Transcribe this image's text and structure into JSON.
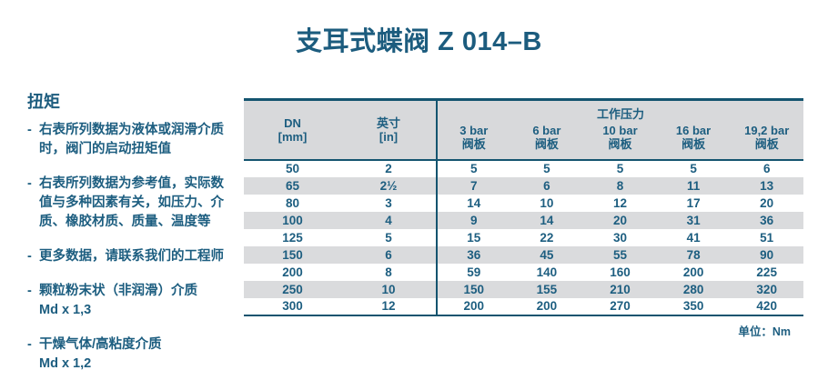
{
  "title": "支耳式蝶阀 Z 014–B",
  "colors": {
    "text": "#1d5e80",
    "line": "#14546f",
    "header_bg": "#d8d9db",
    "stripe_bg": "#dadbdd"
  },
  "notes": {
    "heading": "扭矩",
    "dash": "-",
    "items": [
      "右表所列数据为液体或润滑介质\n时，阀门的启动扭矩值",
      "右表所列数据为参考值，实际数\n值与多种因素有关，如压力、介\n质、橡胶材质、质量、温度等",
      "更多数据，请联系我们的工程师",
      "颗粒粉末状（非润滑）介质\nMd x 1,3",
      "干燥气体/高粘度介质\nMd x 1,2"
    ]
  },
  "table": {
    "header": {
      "dn": "DN\n[mm]",
      "inch": "英寸\n[in]",
      "working_pressure": "工作压力",
      "pressures": [
        "3 bar\n阀板",
        "6 bar\n阀板",
        "10 bar\n阀板",
        "16 bar\n阀板",
        "19,2 bar\n阀板"
      ]
    },
    "rows": [
      [
        "50",
        "2",
        "5",
        "5",
        "5",
        "5",
        "6"
      ],
      [
        "65",
        "2½",
        "7",
        "6",
        "8",
        "11",
        "13"
      ],
      [
        "80",
        "3",
        "14",
        "10",
        "12",
        "17",
        "20"
      ],
      [
        "100",
        "4",
        "9",
        "14",
        "20",
        "31",
        "36"
      ],
      [
        "125",
        "5",
        "15",
        "22",
        "30",
        "41",
        "51"
      ],
      [
        "150",
        "6",
        "36",
        "45",
        "55",
        "78",
        "90"
      ],
      [
        "200",
        "8",
        "59",
        "140",
        "160",
        "200",
        "225"
      ],
      [
        "250",
        "10",
        "150",
        "155",
        "210",
        "280",
        "320"
      ],
      [
        "300",
        "12",
        "200",
        "200",
        "270",
        "350",
        "420"
      ]
    ],
    "unit_note": "单位：Nm"
  }
}
